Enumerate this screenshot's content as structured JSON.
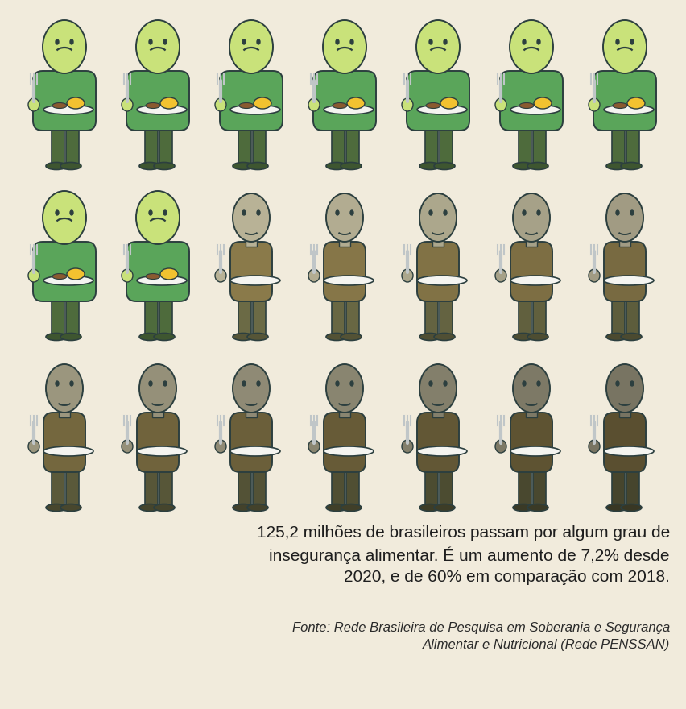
{
  "chart_data": {
    "type": "pictogram",
    "values": [
      9,
      12
    ],
    "colors": [
      "#5aa55a",
      "#8a7a4a"
    ],
    "caption": "125,2 milhões de brasileiros passam por algum grau de\ninsegurança alimentar. É um aumento de 7,2% desde\n2020, e de 60% em comparação com 2018.",
    "source": "Fonte: Rede Brasileira de Pesquisa em Soberania e Segurança\nAlimentar e Nutricional (Rede PENSSAN)"
  }
}
